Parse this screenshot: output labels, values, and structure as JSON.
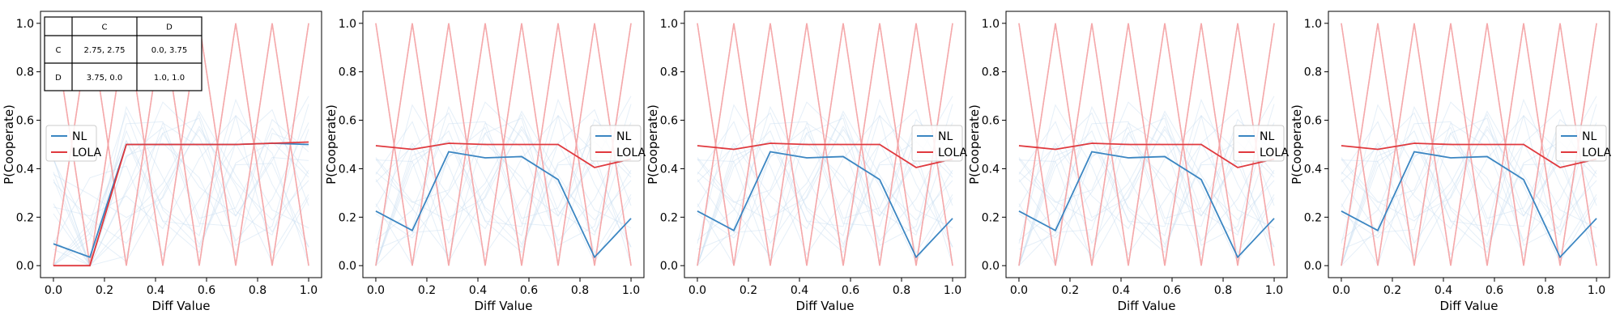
{
  "colors": {
    "nl": "#3b86c2",
    "lola": "#e0393e",
    "nl_faint": "#c6dbef",
    "lola_faint": "#f4a3a5"
  },
  "chart_data": [
    {
      "type": "line",
      "xlabel": "Diff Value",
      "ylabel": "P(Cooperate)",
      "xlim": [
        0,
        1
      ],
      "ylim": [
        0,
        1
      ],
      "xticks": [
        "0.0",
        "0.2",
        "0.4",
        "0.6",
        "0.8",
        "1.0"
      ],
      "yticks": [
        "0.0",
        "0.2",
        "0.4",
        "0.6",
        "0.8",
        "1.0"
      ],
      "grid": false,
      "legend": {
        "position": "center-left",
        "entries": [
          "NL",
          "LOLA"
        ]
      },
      "payoff_table": {
        "header": [
          "",
          "C",
          "D"
        ],
        "rows": [
          [
            "C",
            "2.75, 2.75",
            "0.0, 3.75"
          ],
          [
            "D",
            "3.75, 0.0",
            "1.0, 1.0"
          ]
        ]
      },
      "x": [
        0.0,
        0.1429,
        0.2857,
        0.4286,
        0.5714,
        0.7143,
        0.8571,
        1.0
      ],
      "series": [
        {
          "name": "NL",
          "values": [
            0.09,
            0.035,
            0.5,
            0.5,
            0.5,
            0.5,
            0.505,
            0.5
          ]
        },
        {
          "name": "LOLA",
          "values": [
            0.0,
            0.0,
            0.5,
            0.5,
            0.5,
            0.5,
            0.505,
            0.51
          ]
        }
      ]
    },
    {
      "type": "line",
      "xlabel": "Diff Value",
      "ylabel": "P(Cooperate)",
      "xlim": [
        0,
        1
      ],
      "ylim": [
        0,
        1
      ],
      "xticks": [
        "0.0",
        "0.2",
        "0.4",
        "0.6",
        "0.8",
        "1.0"
      ],
      "yticks": [
        "0.0",
        "0.2",
        "0.4",
        "0.6",
        "0.8",
        "1.0"
      ],
      "grid": false,
      "legend": {
        "position": "center-right",
        "entries": [
          "NL",
          "LOLA"
        ]
      },
      "x": [
        0.0,
        0.1429,
        0.2857,
        0.4286,
        0.5714,
        0.7143,
        0.8571,
        1.0
      ],
      "series": [
        {
          "name": "NL",
          "values": [
            0.225,
            0.145,
            0.47,
            0.445,
            0.45,
            0.355,
            0.035,
            0.195
          ]
        },
        {
          "name": "LOLA",
          "values": [
            0.495,
            0.48,
            0.505,
            0.5,
            0.5,
            0.5,
            0.405,
            0.44
          ]
        }
      ]
    },
    {
      "type": "line",
      "xlabel": "Diff Value",
      "ylabel": "P(Cooperate)",
      "xlim": [
        0,
        1
      ],
      "ylim": [
        0,
        1
      ],
      "xticks": [
        "0.0",
        "0.2",
        "0.4",
        "0.6",
        "0.8",
        "1.0"
      ],
      "yticks": [
        "0.0",
        "0.2",
        "0.4",
        "0.6",
        "0.8",
        "1.0"
      ],
      "grid": false,
      "legend": {
        "position": "center-right",
        "entries": [
          "NL",
          "LOLA"
        ]
      },
      "x": [
        0.0,
        0.1429,
        0.2857,
        0.4286,
        0.5714,
        0.7143,
        0.8571,
        1.0
      ],
      "series": [
        {
          "name": "NL",
          "values": [
            0.225,
            0.145,
            0.47,
            0.445,
            0.45,
            0.355,
            0.035,
            0.195
          ]
        },
        {
          "name": "LOLA",
          "values": [
            0.495,
            0.48,
            0.505,
            0.5,
            0.5,
            0.5,
            0.405,
            0.44
          ]
        }
      ]
    },
    {
      "type": "line",
      "xlabel": "Diff Value",
      "ylabel": "P(Cooperate)",
      "xlim": [
        0,
        1
      ],
      "ylim": [
        0,
        1
      ],
      "xticks": [
        "0.0",
        "0.2",
        "0.4",
        "0.6",
        "0.8",
        "1.0"
      ],
      "yticks": [
        "0.0",
        "0.2",
        "0.4",
        "0.6",
        "0.8",
        "1.0"
      ],
      "grid": false,
      "legend": {
        "position": "center-right",
        "entries": [
          "NL",
          "LOLA"
        ]
      },
      "x": [
        0.0,
        0.1429,
        0.2857,
        0.4286,
        0.5714,
        0.7143,
        0.8571,
        1.0
      ],
      "series": [
        {
          "name": "NL",
          "values": [
            0.225,
            0.145,
            0.47,
            0.445,
            0.45,
            0.355,
            0.035,
            0.195
          ]
        },
        {
          "name": "LOLA",
          "values": [
            0.495,
            0.48,
            0.505,
            0.5,
            0.5,
            0.5,
            0.405,
            0.44
          ]
        }
      ]
    },
    {
      "type": "line",
      "xlabel": "Diff Value",
      "ylabel": "P(Cooperate)",
      "xlim": [
        0,
        1
      ],
      "ylim": [
        0,
        1
      ],
      "xticks": [
        "0.0",
        "0.2",
        "0.4",
        "0.6",
        "0.8",
        "1.0"
      ],
      "yticks": [
        "0.0",
        "0.2",
        "0.4",
        "0.6",
        "0.8",
        "1.0"
      ],
      "grid": false,
      "legend": {
        "position": "center-right",
        "entries": [
          "NL",
          "LOLA"
        ]
      },
      "x": [
        0.0,
        0.1429,
        0.2857,
        0.4286,
        0.5714,
        0.7143,
        0.8571,
        1.0
      ],
      "series": [
        {
          "name": "NL",
          "values": [
            0.225,
            0.145,
            0.47,
            0.445,
            0.45,
            0.355,
            0.035,
            0.195
          ]
        },
        {
          "name": "LOLA",
          "values": [
            0.495,
            0.48,
            0.505,
            0.5,
            0.5,
            0.5,
            0.405,
            0.44
          ]
        }
      ]
    }
  ]
}
